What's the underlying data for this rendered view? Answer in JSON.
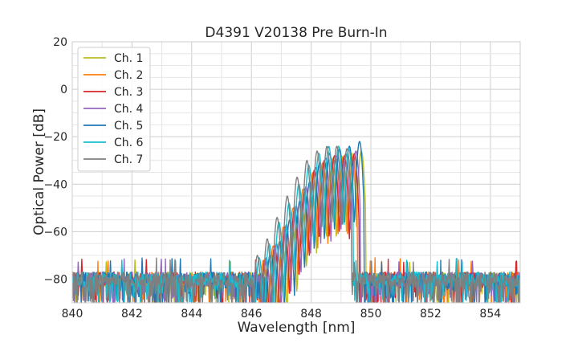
{
  "chart_data": {
    "type": "line",
    "title": "D4391 V20138 Pre Burn-In",
    "xlabel": "Wavelength [nm]",
    "ylabel": "Optical Power [dB]",
    "xlim": [
      840,
      855
    ],
    "ylim": [
      -90,
      20
    ],
    "xticks": [
      840,
      842,
      844,
      846,
      848,
      850,
      852,
      854
    ],
    "yticks": [
      20,
      0,
      -20,
      -40,
      -60,
      -80
    ],
    "xtick_labels": [
      "840",
      "842",
      "844",
      "846",
      "848",
      "850",
      "852",
      "854"
    ],
    "ytick_labels": [
      "20",
      "0",
      "−20",
      "−40",
      "−60",
      "−80"
    ],
    "grid": true,
    "legend_position": "top-left",
    "noise_floor_db": -80,
    "series": [
      {
        "name": "Ch. 1",
        "color": "#bcbd22",
        "peaks": [
          [
            846.7,
            -70
          ],
          [
            847.03,
            -65
          ],
          [
            847.37,
            -57
          ],
          [
            847.7,
            -50
          ],
          [
            848.02,
            -40
          ],
          [
            848.35,
            -33
          ],
          [
            848.68,
            -30
          ],
          [
            849.02,
            -28
          ],
          [
            849.36,
            -27
          ],
          [
            849.68,
            -26
          ]
        ]
      },
      {
        "name": "Ch. 2",
        "color": "#ff7f0e",
        "peaks": [
          [
            846.4,
            -72
          ],
          [
            846.73,
            -66
          ],
          [
            847.07,
            -58
          ],
          [
            847.4,
            -50
          ],
          [
            847.73,
            -42
          ],
          [
            848.06,
            -35
          ],
          [
            848.39,
            -31
          ],
          [
            848.73,
            -29
          ],
          [
            849.06,
            -29
          ],
          [
            849.4,
            -28
          ]
        ]
      },
      {
        "name": "Ch. 3",
        "color": "#d62728",
        "peaks": [
          [
            846.45,
            -72
          ],
          [
            846.78,
            -66
          ],
          [
            847.12,
            -58
          ],
          [
            847.45,
            -50
          ],
          [
            847.78,
            -42
          ],
          [
            848.11,
            -34
          ],
          [
            848.44,
            -30
          ],
          [
            848.78,
            -28
          ],
          [
            849.11,
            -28
          ],
          [
            849.45,
            -27
          ]
        ]
      },
      {
        "name": "Ch. 4",
        "color": "#9467bd",
        "peaks": [
          [
            846.5,
            -71
          ],
          [
            846.84,
            -65
          ],
          [
            847.17,
            -57
          ],
          [
            847.5,
            -49
          ],
          [
            847.83,
            -41
          ],
          [
            848.16,
            -33
          ],
          [
            848.49,
            -29
          ],
          [
            848.83,
            -28
          ],
          [
            849.16,
            -27
          ],
          [
            849.5,
            -26
          ]
        ]
      },
      {
        "name": "Ch. 5",
        "color": "#1f77b4",
        "peaks": [
          [
            846.62,
            -70
          ],
          [
            846.95,
            -64
          ],
          [
            847.28,
            -55
          ],
          [
            847.62,
            -47
          ],
          [
            847.95,
            -39
          ],
          [
            848.28,
            -31
          ],
          [
            848.62,
            -27
          ],
          [
            848.95,
            -25
          ],
          [
            849.28,
            -24
          ],
          [
            849.62,
            -22
          ]
        ]
      },
      {
        "name": "Ch. 6",
        "color": "#17becf",
        "peaks": [
          [
            846.26,
            -71
          ],
          [
            846.59,
            -65
          ],
          [
            846.92,
            -56
          ],
          [
            847.26,
            -48
          ],
          [
            847.59,
            -40
          ],
          [
            847.92,
            -32
          ],
          [
            848.26,
            -27
          ],
          [
            848.59,
            -24
          ],
          [
            848.92,
            -24
          ],
          [
            849.26,
            -25
          ]
        ]
      },
      {
        "name": "Ch. 7",
        "color": "#7f7f7f",
        "peaks": [
          [
            846.2,
            -70
          ],
          [
            846.53,
            -63
          ],
          [
            846.86,
            -54
          ],
          [
            847.2,
            -45
          ],
          [
            847.53,
            -37
          ],
          [
            847.86,
            -30
          ],
          [
            848.2,
            -26
          ],
          [
            848.53,
            -24
          ],
          [
            848.86,
            -24
          ],
          [
            849.2,
            -25
          ]
        ]
      }
    ]
  }
}
